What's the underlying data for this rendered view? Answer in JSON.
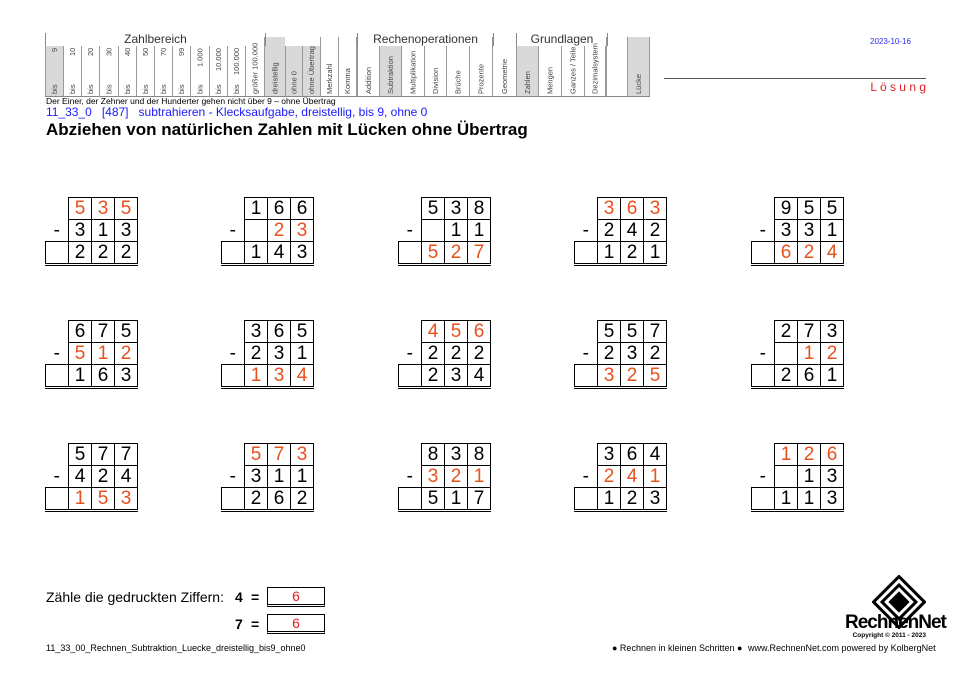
{
  "header": {
    "groups": {
      "zahlbereich": "Zahlbereich",
      "rechenoperationen": "Rechenoperationen",
      "grundlagen": "Grundlagen"
    },
    "columns": [
      {
        "top": "9",
        "bottom": "bis",
        "shaded": true
      },
      {
        "top": "10",
        "bottom": "bis"
      },
      {
        "top": "20",
        "bottom": "bis"
      },
      {
        "top": "30",
        "bottom": "bis"
      },
      {
        "top": "40",
        "bottom": "bis"
      },
      {
        "top": "50",
        "bottom": "bis"
      },
      {
        "top": "70",
        "bottom": "bis"
      },
      {
        "top": "99",
        "bottom": "bis"
      },
      {
        "top": "1.000",
        "bottom": "bis"
      },
      {
        "top": "10.000",
        "bottom": "bis"
      },
      {
        "top": "100.000",
        "bottom": "bis"
      },
      {
        "top": "",
        "bottom": "größer 100.000"
      },
      {
        "top": "",
        "bottom": "dreistellig",
        "shaded": true,
        "tall": true
      },
      {
        "top": "",
        "bottom": "ohne 0",
        "shaded": true
      },
      {
        "top": "",
        "bottom": "ohne Übertrag",
        "shaded": true
      },
      {
        "top": "",
        "bottom": "Merkzahl",
        "tall": true
      },
      {
        "top": "",
        "bottom": "Komma",
        "tall": true
      },
      {
        "top": "",
        "bottom": "Addition"
      },
      {
        "top": "",
        "bottom": "Subtraktion",
        "shaded": true
      },
      {
        "top": "",
        "bottom": "Multiplikation"
      },
      {
        "top": "",
        "bottom": "Division"
      },
      {
        "top": "",
        "bottom": "Brüche"
      },
      {
        "top": "",
        "bottom": "Prozente"
      },
      {
        "top": "",
        "bottom": "Geometrie",
        "tall": true
      },
      {
        "top": "",
        "bottom": "Zahlen",
        "shaded": true
      },
      {
        "top": "",
        "bottom": "Mengen"
      },
      {
        "top": "",
        "bottom": "Ganzes / Teile"
      },
      {
        "top": "",
        "bottom": "Dezimalsystem"
      },
      {
        "top": "",
        "bottom": "",
        "tall": true
      },
      {
        "top": "",
        "bottom": "Lücke",
        "shaded": true,
        "tall": true
      }
    ],
    "note": "Der Einer, der Zehner und der Hunderter gehen nicht über 9 – ohne Übertrag",
    "date": "2023-10-16",
    "solution_label": "L ö s u n g"
  },
  "subtitle": "11_33_0   [487]   subtrahieren - Klecksaufgabe, dreistellig, bis 9, ohne 0",
  "title": "Abziehen von natürlichen Zahlen mit Lücken ohne Übertrag",
  "operator": "-",
  "problems": [
    {
      "top": "535",
      "sub": "313",
      "res": "222",
      "red": "top"
    },
    {
      "top": "166",
      "sub": " 23",
      "res": "143",
      "red": "sub"
    },
    {
      "top": "538",
      "sub": " 11",
      "res": "527",
      "red": "res"
    },
    {
      "top": "363",
      "sub": "242",
      "res": "121",
      "red": "top"
    },
    {
      "top": "955",
      "sub": "331",
      "res": "624",
      "red": "res"
    },
    {
      "top": "675",
      "sub": "512",
      "res": "163",
      "red": "sub"
    },
    {
      "top": "365",
      "sub": "231",
      "res": "134",
      "red": "res"
    },
    {
      "top": "456",
      "sub": "222",
      "res": "234",
      "red": "top"
    },
    {
      "top": "557",
      "sub": "232",
      "res": "325",
      "red": "res"
    },
    {
      "top": "273",
      "sub": " 12",
      "res": "261",
      "red": "sub"
    },
    {
      "top": "577",
      "sub": "424",
      "res": "153",
      "red": "res"
    },
    {
      "top": "573",
      "sub": "311",
      "res": "262",
      "red": "top"
    },
    {
      "top": "838",
      "sub": "321",
      "res": "517",
      "red": "sub"
    },
    {
      "top": "364",
      "sub": "241",
      "res": "123",
      "red": "sub"
    },
    {
      "top": "126",
      "sub": " 13",
      "res": "113",
      "red": "top"
    }
  ],
  "count": {
    "label": "Zähle die gedruckten Ziffern:",
    "rows": [
      {
        "digit": "4",
        "eq": "=",
        "answer": "6"
      },
      {
        "digit": "7",
        "eq": "=",
        "answer": "6"
      }
    ]
  },
  "footer": {
    "filename": "11_33_00_Rechnen_Subtraktion_Luecke_dreistellig_bis9_ohne0",
    "slogan": "● Rechnen in kleinen Schritten ●",
    "site": "www.RechnenNet.com powered by KolbergNet",
    "logo_name": "RechnenNet",
    "copyright": "Copyright © 2011 - 2023"
  },
  "colors": {
    "accent_red": "#e8501c",
    "blue": "#1a1aff",
    "date": "#2a2aff",
    "shade": "#d9d9d9"
  }
}
